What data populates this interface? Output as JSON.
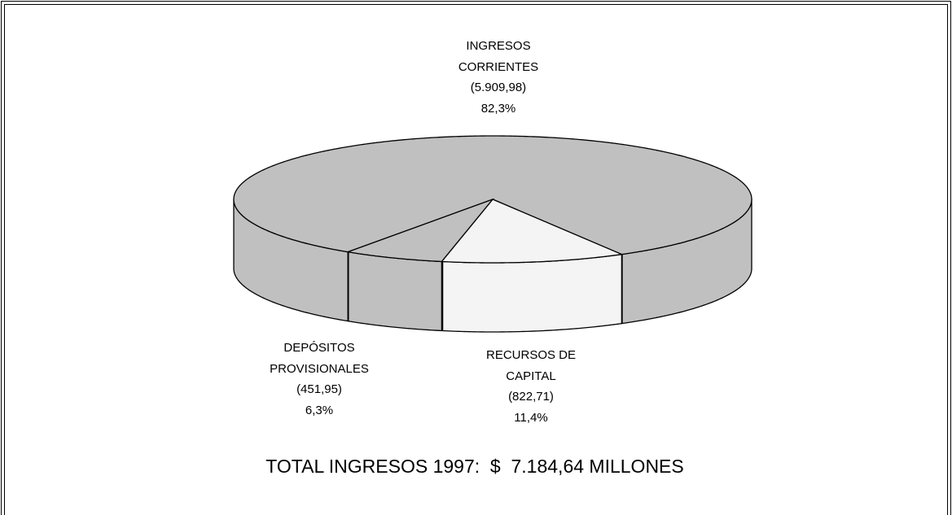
{
  "chart_data": {
    "type": "pie3d",
    "title": "TOTAL INGRESOS 1997:  $  7.184,64 MILLONES",
    "categories": [
      "INGRESOS\nCORRIENTES",
      "RECURSOS DE\nCAPITAL",
      "DEPÓSITOS\nPROVISIONALES"
    ],
    "values": [
      5909.98,
      822.71,
      451.95
    ],
    "value_labels": [
      "(5.909,98)",
      "(822,71)",
      "(451,95)"
    ],
    "percents": [
      82.3,
      11.4,
      6.3
    ],
    "percent_labels": [
      "82,3%",
      "11,4%",
      "6,3%"
    ],
    "colors": [
      "#c0c0c0",
      "#f4f4f4",
      "#c0c0c0"
    ]
  }
}
